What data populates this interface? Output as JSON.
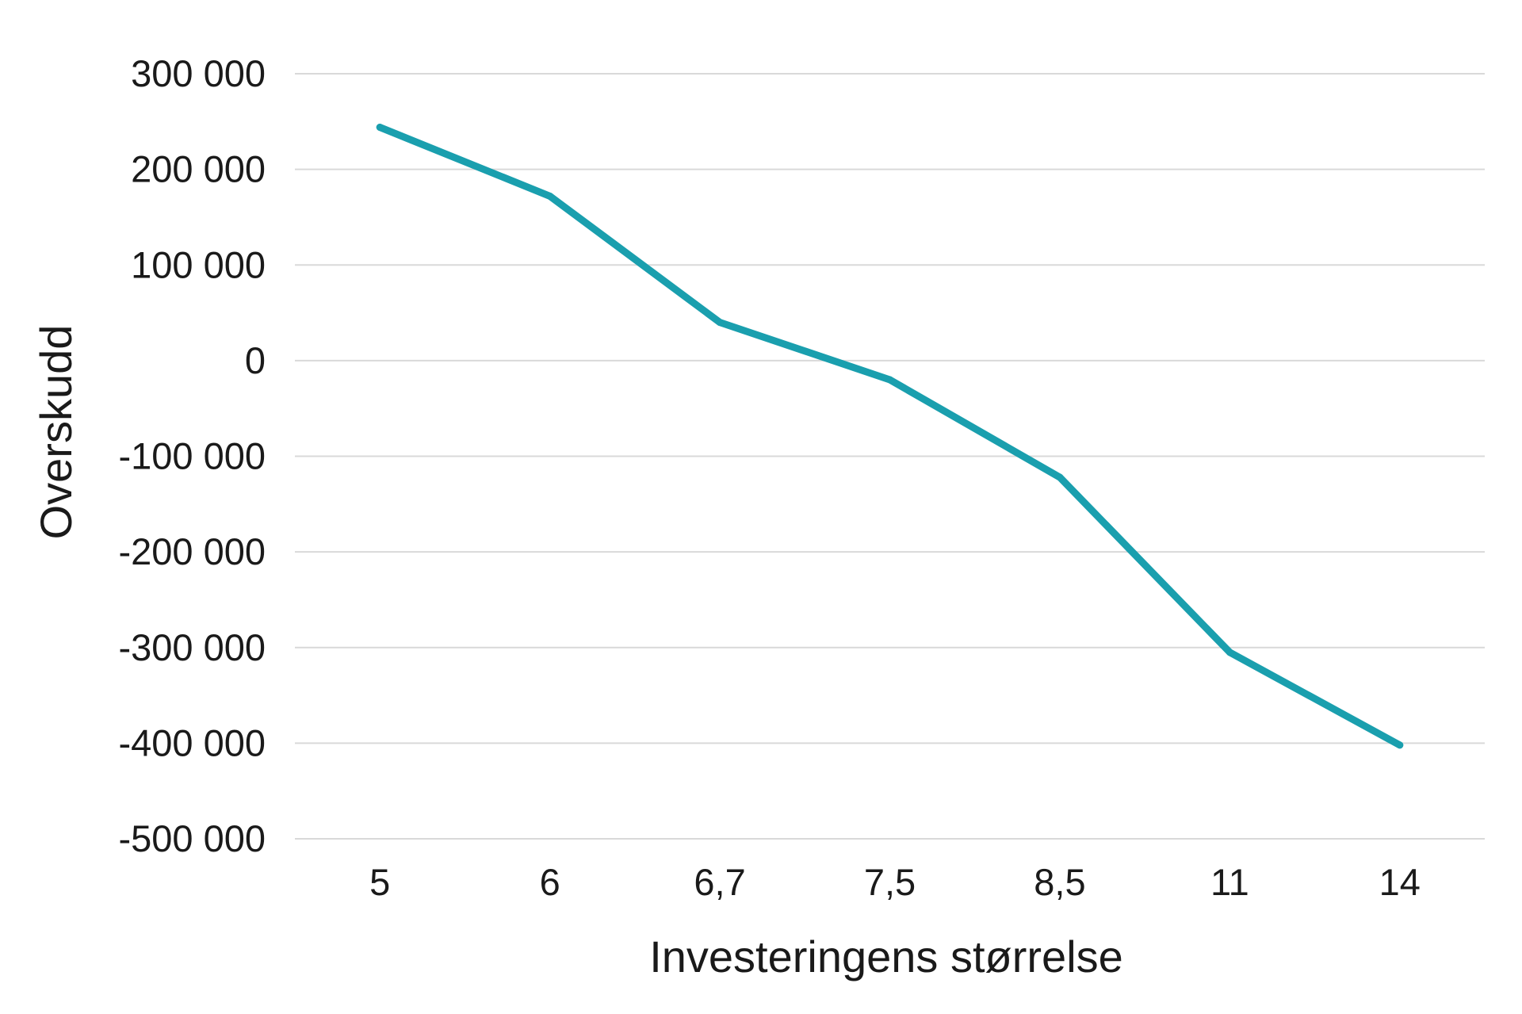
{
  "chart_data": {
    "type": "line",
    "title": "",
    "xlabel": "Investeringens størrelse",
    "ylabel": "Overskudd",
    "categories": [
      "5",
      "6",
      "6,7",
      "7,5",
      "8,5",
      "11",
      "14"
    ],
    "series": [
      {
        "values": [
          244000,
          172000,
          40000,
          -20000,
          -122000,
          -305000,
          -402000
        ],
        "color": "#1a9fae"
      }
    ],
    "ylim": [
      -500000,
      300000
    ],
    "yticks": [
      300000,
      200000,
      100000,
      0,
      -100000,
      -200000,
      -300000,
      -400000,
      -500000
    ],
    "ytick_labels": [
      "300 000",
      "200 000",
      "100 000",
      "0",
      "-100 000",
      "-200 000",
      "-300 000",
      "-400 000",
      "-500 000"
    ],
    "grid": true,
    "legend": "none"
  }
}
